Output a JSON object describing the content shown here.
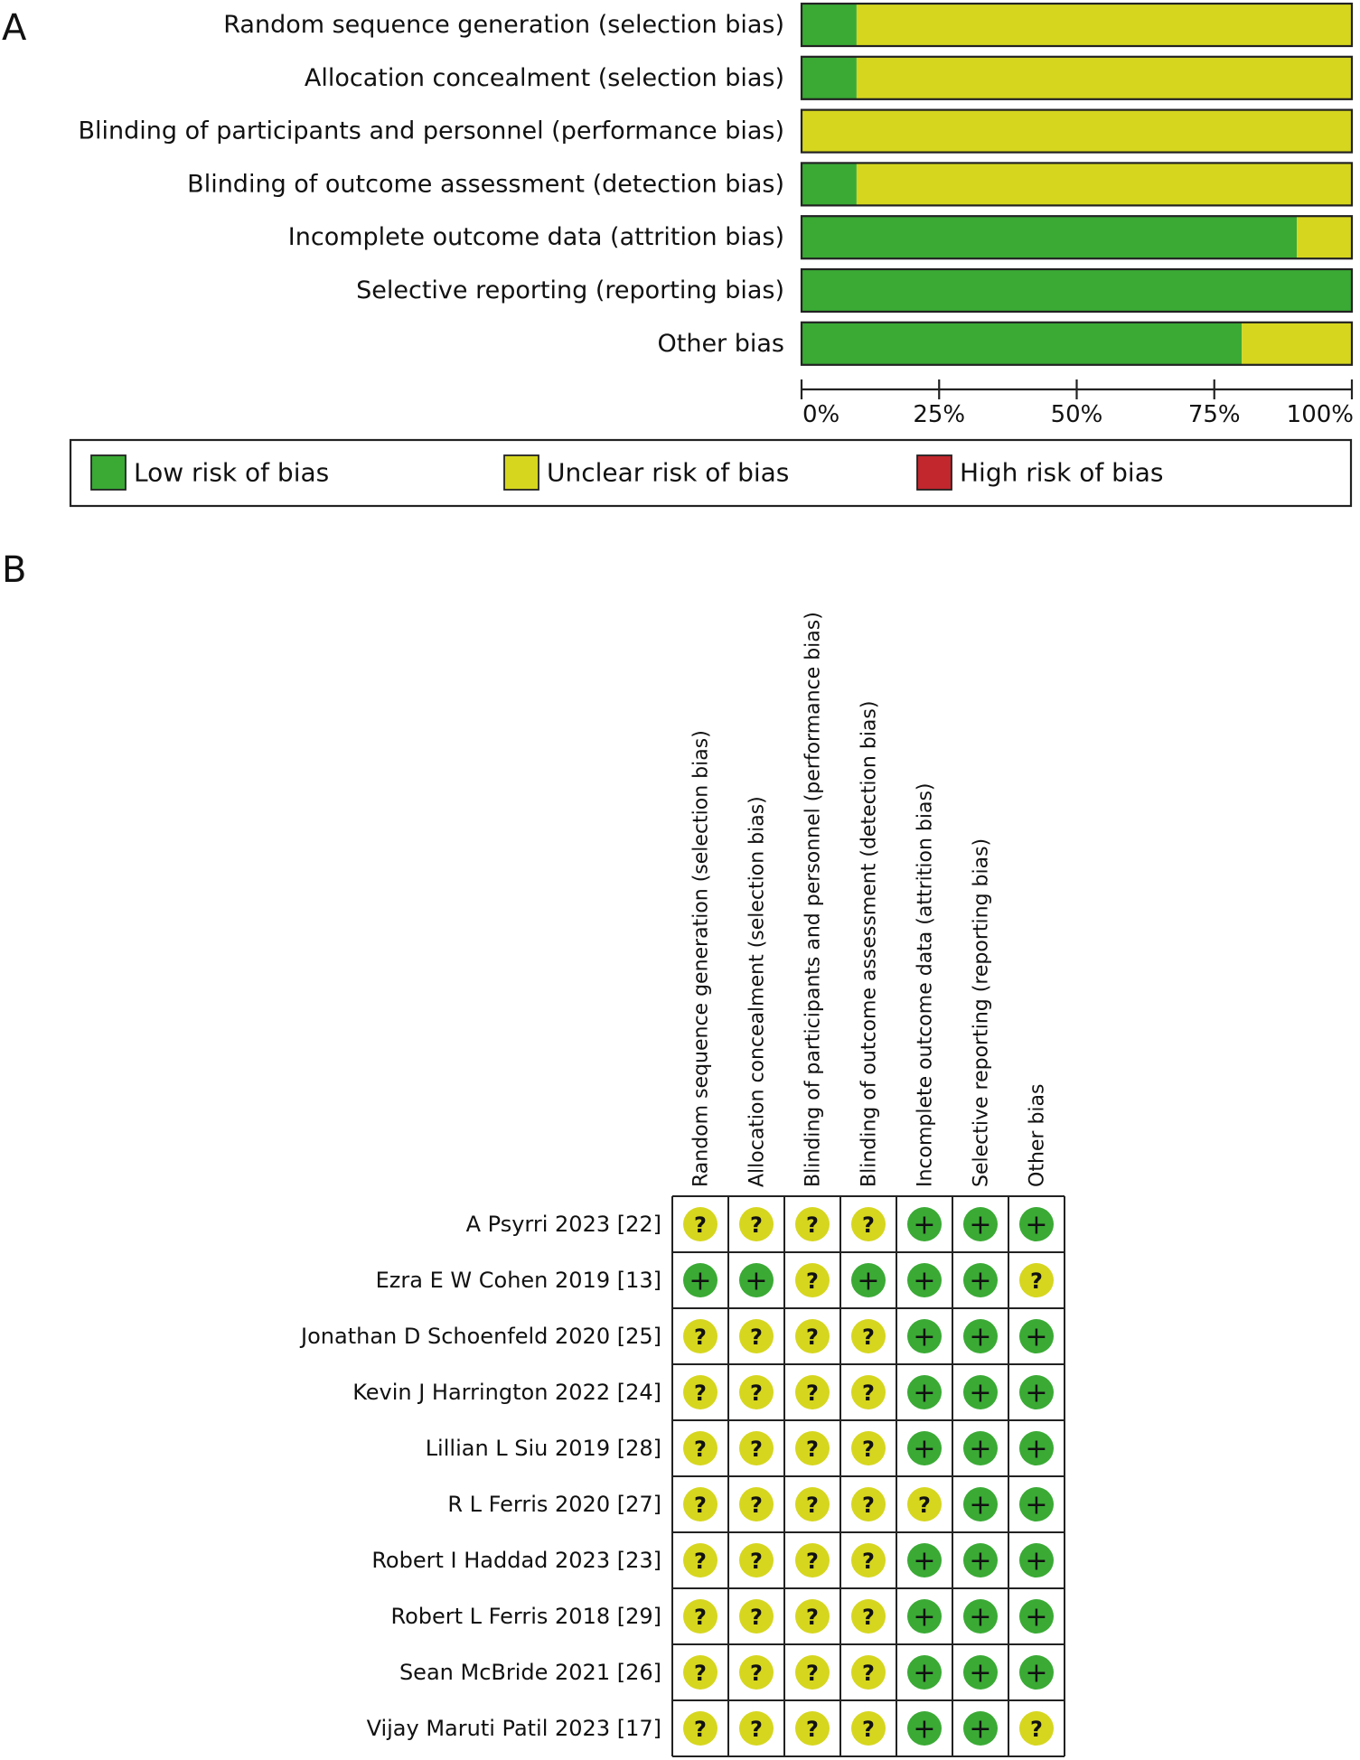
{
  "panel_labels": {
    "a": "A",
    "b": "B"
  },
  "colors": {
    "low": "#3aaa35",
    "unclear": "#d6d61f",
    "high": "#c1272d",
    "frame": "#222222"
  },
  "chart_data": [
    {
      "type": "bar",
      "subtype": "stacked-horizontal-percent",
      "title": "",
      "categories": [
        "Random sequence generation (selection bias)",
        "Allocation concealment (selection bias)",
        "Blinding of participants and personnel (performance bias)",
        "Blinding of outcome assessment (detection bias)",
        "Incomplete outcome data (attrition bias)",
        "Selective reporting (reporting bias)",
        "Other bias"
      ],
      "series": [
        {
          "name": "Low risk of bias",
          "key": "low",
          "values": [
            10,
            10,
            0,
            10,
            90,
            100,
            80
          ]
        },
        {
          "name": "Unclear risk of bias",
          "key": "unclear",
          "values": [
            90,
            90,
            100,
            90,
            10,
            0,
            20
          ]
        },
        {
          "name": "High risk of bias",
          "key": "high",
          "values": [
            0,
            0,
            0,
            0,
            0,
            0,
            0
          ]
        }
      ],
      "xlim": [
        0,
        100
      ],
      "xticks": [
        "0%",
        "25%",
        "50%",
        "75%",
        "100%"
      ],
      "legend": {
        "position": "bottom",
        "entries": [
          {
            "key": "low",
            "label": "Low risk of bias"
          },
          {
            "key": "unclear",
            "label": "Unclear risk of bias"
          },
          {
            "key": "high",
            "label": "High risk of bias"
          }
        ]
      }
    },
    {
      "type": "table",
      "subtype": "risk-of-bias-summary",
      "columns": [
        "Random sequence generation (selection bias)",
        "Allocation concealment (selection bias)",
        "Blinding of participants and personnel (performance bias)",
        "Blinding of outcome assessment (detection bias)",
        "Incomplete outcome data (attrition bias)",
        "Selective reporting (reporting bias)",
        "Other bias"
      ],
      "symbols": {
        "low": "+",
        "unclear": "?"
      },
      "rows": [
        {
          "study": "A Psyrri 2023 [22]",
          "ratings": [
            "unclear",
            "unclear",
            "unclear",
            "unclear",
            "low",
            "low",
            "low"
          ]
        },
        {
          "study": "Ezra E W Cohen 2019 [13]",
          "ratings": [
            "low",
            "low",
            "unclear",
            "low",
            "low",
            "low",
            "unclear"
          ]
        },
        {
          "study": "Jonathan D Schoenfeld 2020 [25]",
          "ratings": [
            "unclear",
            "unclear",
            "unclear",
            "unclear",
            "low",
            "low",
            "low"
          ]
        },
        {
          "study": "Kevin J Harrington 2022 [24]",
          "ratings": [
            "unclear",
            "unclear",
            "unclear",
            "unclear",
            "low",
            "low",
            "low"
          ]
        },
        {
          "study": "Lillian L Siu 2019 [28]",
          "ratings": [
            "unclear",
            "unclear",
            "unclear",
            "unclear",
            "low",
            "low",
            "low"
          ]
        },
        {
          "study": "R L Ferris 2020 [27]",
          "ratings": [
            "unclear",
            "unclear",
            "unclear",
            "unclear",
            "unclear",
            "low",
            "low"
          ]
        },
        {
          "study": "Robert I Haddad 2023 [23]",
          "ratings": [
            "unclear",
            "unclear",
            "unclear",
            "unclear",
            "low",
            "low",
            "low"
          ]
        },
        {
          "study": "Robert L Ferris 2018 [29]",
          "ratings": [
            "unclear",
            "unclear",
            "unclear",
            "unclear",
            "low",
            "low",
            "low"
          ]
        },
        {
          "study": "Sean McBride 2021 [26]",
          "ratings": [
            "unclear",
            "unclear",
            "unclear",
            "unclear",
            "low",
            "low",
            "low"
          ]
        },
        {
          "study": "Vijay Maruti Patil 2023 [17]",
          "ratings": [
            "unclear",
            "unclear",
            "unclear",
            "unclear",
            "low",
            "low",
            "unclear"
          ]
        }
      ]
    }
  ]
}
